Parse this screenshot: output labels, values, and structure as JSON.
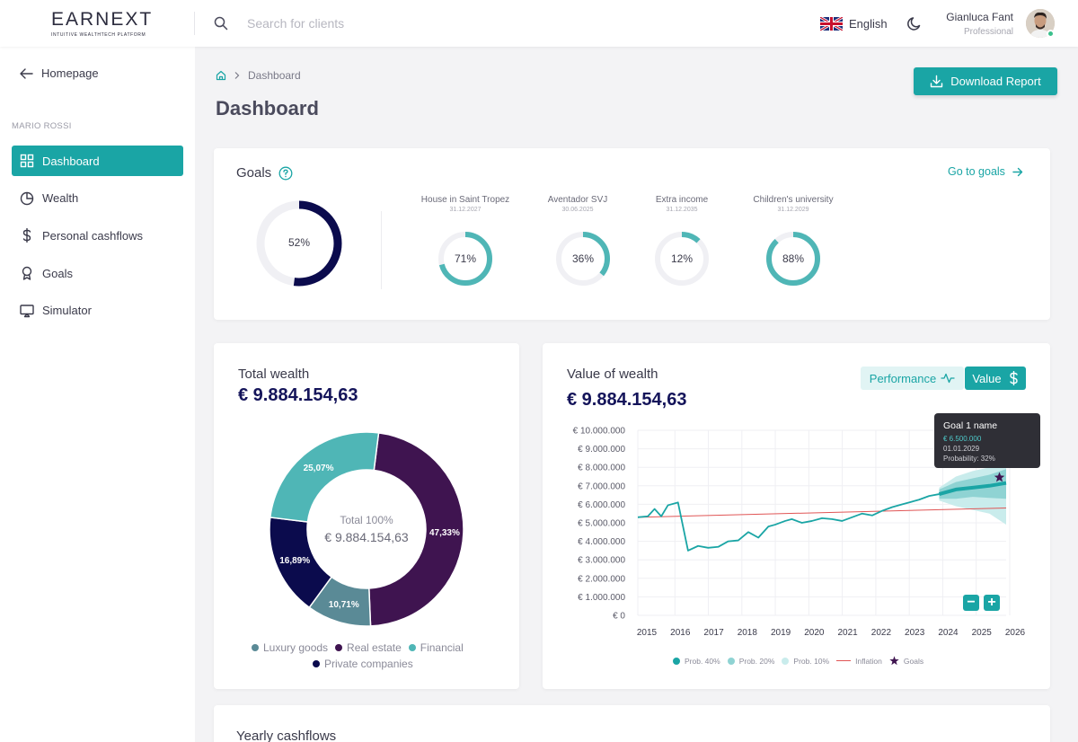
{
  "app": {
    "logo": "EARNEXT",
    "logo_tagline": "INTUITIVE WEALTHTECH PLATFORM"
  },
  "topbar": {
    "search_placeholder": "Search for clients",
    "language": "English",
    "user_name": "Gianluca Fant",
    "user_role": "Professional"
  },
  "sidebar": {
    "back_label": "Homepage",
    "client_name": "MARIO ROSSI",
    "items": [
      {
        "label": "Dashboard",
        "icon": "grid-icon",
        "active": true
      },
      {
        "label": "Wealth",
        "icon": "pie-chart-icon",
        "active": false
      },
      {
        "label": "Personal cashflows",
        "icon": "dollar-icon",
        "active": false
      },
      {
        "label": "Goals",
        "icon": "award-icon",
        "active": false
      },
      {
        "label": "Simulator",
        "icon": "monitor-icon",
        "active": false
      }
    ]
  },
  "page": {
    "breadcrumb": "Dashboard",
    "title": "Dashboard",
    "download_label": "Download Report"
  },
  "goals": {
    "title": "Goals",
    "link_label": "Go to goals",
    "overall": {
      "percent": 52,
      "label": "52%"
    },
    "items": [
      {
        "name": "House in Saint Tropez",
        "date": "31.12.2027",
        "percent": 71,
        "label": "71%"
      },
      {
        "name": "Aventador SVJ",
        "date": "30.06.2025",
        "percent": 36,
        "label": "36%"
      },
      {
        "name": "Extra income",
        "date": "31.12.2035",
        "percent": 12,
        "label": "12%"
      },
      {
        "name": "Children's university",
        "date": "31.12.2029",
        "percent": 88,
        "label": "88%"
      }
    ]
  },
  "total_wealth": {
    "title": "Total wealth",
    "amount": "€ 9.884.154,63",
    "center_label": "Total 100%",
    "center_amount": "€ 9.884.154,63",
    "colors": {
      "luxury": "#5a8a96",
      "real_estate": "#3f1450",
      "financial": "#4fb6b6",
      "private": "#0b0b4d"
    }
  },
  "value_of_wealth": {
    "title": "Value of wealth",
    "amount": "€ 9.884.154,63",
    "toggle_performance": "Performance",
    "toggle_value": "Value",
    "tooltip": {
      "title": "Goal 1 name",
      "value": "€ 6.500.000",
      "date": "01.01.2029",
      "probability": "Probability: 32%"
    },
    "legend": [
      "Prob. 40%",
      "Prob. 20%",
      "Prob. 10%",
      "Inflation",
      "Goals"
    ]
  },
  "yearly_cashflows": {
    "title": "Yearly cashflows"
  },
  "chart_data": [
    {
      "type": "pie",
      "title": "Total wealth",
      "categories": [
        "Real estate",
        "Luxury goods",
        "Private companies",
        "Financial"
      ],
      "values": [
        47.33,
        10.71,
        16.89,
        25.07
      ],
      "labels": [
        "47,33%",
        "10,71%",
        "16,89%",
        "25,07%"
      ],
      "legend": [
        "Luxury goods",
        "Real estate",
        "Financial",
        "Private companies"
      ]
    },
    {
      "type": "line",
      "title": "Value of wealth",
      "x_ticks": [
        "2015",
        "2016",
        "2017",
        "2018",
        "2019",
        "2020",
        "2021",
        "2022",
        "2023",
        "2024",
        "2025",
        "2026"
      ],
      "y_ticks": [
        "€ 0",
        "€ 1.000.000",
        "€ 2.000.000",
        "€ 3.000.000",
        "€ 4.000.000",
        "€ 5.000.000",
        "€ 6.000.000",
        "€ 7.000.000",
        "€ 8.000.000",
        "€ 9.000.000",
        "€ 10.000.000"
      ],
      "ylim": [
        0,
        10000000
      ],
      "xlim": [
        2015,
        2026
      ],
      "series": [
        {
          "name": "Value",
          "x": [
            2015,
            2015.3,
            2015.5,
            2015.7,
            2015.9,
            2016.2,
            2016.5,
            2016.8,
            2017.1,
            2017.4,
            2017.7,
            2018.0,
            2018.3,
            2018.6,
            2018.9,
            2019.1,
            2019.4,
            2019.6,
            2019.9,
            2020.2,
            2020.5,
            2020.8,
            2021.1,
            2021.4,
            2021.7,
            2022.0,
            2022.3,
            2022.6,
            2022.9,
            2023.1,
            2023.4,
            2023.7,
            2024.0
          ],
          "values": [
            5300000,
            5350000,
            5750000,
            5350000,
            5950000,
            6100000,
            3500000,
            3750000,
            3650000,
            3700000,
            4000000,
            4050000,
            4500000,
            4200000,
            4800000,
            4900000,
            5100000,
            5200000,
            5000000,
            5100000,
            5250000,
            5200000,
            5100000,
            5300000,
            5500000,
            5400000,
            5650000,
            5850000,
            6000000,
            6100000,
            6250000,
            6450000,
            6550000
          ]
        },
        {
          "name": "Prob. 40%",
          "x": [
            2024.0,
            2024.5,
            2025.0,
            2025.5,
            2026.0
          ],
          "values": [
            6550000,
            6800000,
            6900000,
            7000000,
            7150000
          ]
        },
        {
          "name": "Prob. 20%",
          "x": [
            2024.0,
            2024.5,
            2025.0,
            2025.5,
            2026.0
          ],
          "upper": [
            6800000,
            7200000,
            7400000,
            7600000,
            7900000
          ],
          "lower": [
            6300000,
            6300000,
            6400000,
            6350000,
            6300000
          ]
        },
        {
          "name": "Prob. 10%",
          "x": [
            2024.0,
            2024.5,
            2025.0,
            2025.5,
            2026.0
          ],
          "upper": [
            6900000,
            7500000,
            7800000,
            8000000,
            8200000
          ],
          "lower": [
            6200000,
            5900000,
            5700000,
            5500000,
            4900000
          ]
        },
        {
          "name": "Inflation",
          "x": [
            2015,
            2026
          ],
          "values": [
            5300000,
            5800000
          ]
        },
        {
          "name": "Goals",
          "x": [
            2025.8
          ],
          "values": [
            7450000
          ]
        }
      ],
      "colors": {
        "value": "#1aa5a5",
        "p20": "#8fd3d3",
        "p10": "#c9ecec",
        "inflation": "#e05555",
        "goal": "#3f1450"
      }
    }
  ]
}
